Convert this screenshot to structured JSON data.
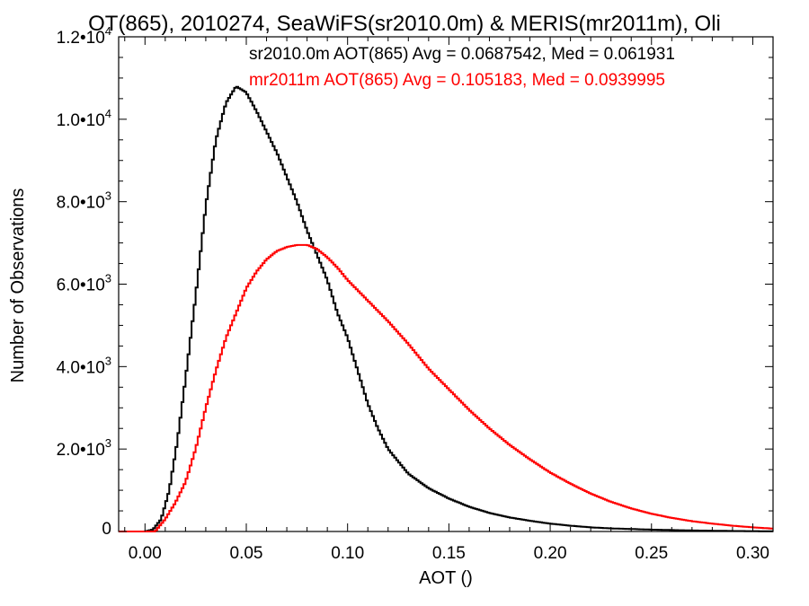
{
  "chart_data": {
    "type": "line",
    "title": "OT(865), 2010274, SeaWiFS(sr2010.0m) & MERIS(mr2011m), Oli",
    "xlabel": "AOT ()",
    "ylabel": "Number of Observations",
    "xlim": [
      -0.013,
      0.31
    ],
    "ylim": [
      0,
      12000
    ],
    "xticks": [
      {
        "value": 0.0,
        "label": "0.00"
      },
      {
        "value": 0.05,
        "label": "0.05"
      },
      {
        "value": 0.1,
        "label": "0.10"
      },
      {
        "value": 0.15,
        "label": "0.15"
      },
      {
        "value": 0.2,
        "label": "0.20"
      },
      {
        "value": 0.25,
        "label": "0.25"
      },
      {
        "value": 0.3,
        "label": "0.30"
      }
    ],
    "yticks": [
      {
        "value": 0,
        "mant": "0",
        "exp": ""
      },
      {
        "value": 2000,
        "mant": "2.0",
        "exp": "3"
      },
      {
        "value": 4000,
        "mant": "4.0",
        "exp": "3"
      },
      {
        "value": 6000,
        "mant": "6.0",
        "exp": "3"
      },
      {
        "value": 8000,
        "mant": "8.0",
        "exp": "3"
      },
      {
        "value": 10000,
        "mant": "1.0",
        "exp": "4"
      },
      {
        "value": 12000,
        "mant": "1.2",
        "exp": "4"
      }
    ],
    "grid": false,
    "legend_position": "top-right",
    "series": [
      {
        "label": "sr2010.0m AOT(865) Avg = 0.0687542, Med = 0.061931",
        "color": "#000000",
        "x": [
          -0.013,
          0.0,
          0.004,
          0.008,
          0.012,
          0.016,
          0.02,
          0.025,
          0.03,
          0.035,
          0.04,
          0.045,
          0.05,
          0.055,
          0.06,
          0.065,
          0.07,
          0.075,
          0.08,
          0.085,
          0.09,
          0.095,
          0.1,
          0.105,
          0.11,
          0.115,
          0.12,
          0.13,
          0.14,
          0.15,
          0.16,
          0.17,
          0.18,
          0.19,
          0.2,
          0.21,
          0.22,
          0.23,
          0.25,
          0.27,
          0.29,
          0.31
        ],
        "y": [
          0,
          0,
          50,
          300,
          1000,
          2200,
          3700,
          5700,
          7900,
          9500,
          10400,
          10800,
          10650,
          10200,
          9700,
          9200,
          8600,
          8000,
          7300,
          6700,
          6100,
          5300,
          4700,
          3900,
          3100,
          2500,
          2000,
          1400,
          1050,
          800,
          600,
          450,
          340,
          260,
          190,
          140,
          100,
          75,
          45,
          25,
          12,
          5
        ]
      },
      {
        "label": "mr2011m AOT(865) Avg = 0.105183, Med = 0.0939995",
        "color": "#ff0000",
        "x": [
          -0.013,
          0.005,
          0.01,
          0.015,
          0.02,
          0.025,
          0.03,
          0.035,
          0.04,
          0.045,
          0.05,
          0.055,
          0.06,
          0.065,
          0.07,
          0.075,
          0.08,
          0.085,
          0.09,
          0.095,
          0.1,
          0.11,
          0.12,
          0.13,
          0.14,
          0.15,
          0.16,
          0.17,
          0.18,
          0.19,
          0.2,
          0.21,
          0.22,
          0.23,
          0.24,
          0.25,
          0.26,
          0.27,
          0.28,
          0.29,
          0.3,
          0.31
        ],
        "y": [
          0,
          0,
          300,
          700,
          1200,
          2000,
          3000,
          3900,
          4700,
          5300,
          5900,
          6300,
          6600,
          6800,
          6900,
          6950,
          6950,
          6850,
          6650,
          6400,
          6100,
          5600,
          5100,
          4550,
          3950,
          3450,
          2950,
          2500,
          2100,
          1750,
          1430,
          1160,
          920,
          720,
          560,
          430,
          330,
          250,
          190,
          140,
          100,
          70
        ]
      }
    ]
  }
}
